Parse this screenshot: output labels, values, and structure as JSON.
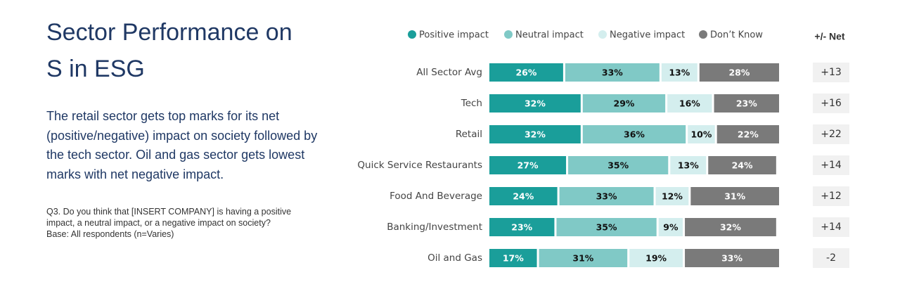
{
  "chart_data": {
    "type": "stacked-bar",
    "orientation": "horizontal",
    "title": "Sector Performance on S in ESG",
    "description": "The retail sector gets top marks for its net (positive/negative) impact on society followed by the tech sector. Oil and gas sector gets lowest marks with net negative impact.",
    "note": "Q3. Do you think that [INSERT COMPANY] is having a positive impact, a neutral impact, or a negative impact on society? Base: All respondents (n=Varies)",
    "categories": [
      "All Sector Avg",
      "Tech",
      "Retail",
      "Quick Service Restaurants",
      "Food And Beverage",
      "Banking/Investment",
      "Oil and Gas"
    ],
    "series": [
      {
        "name": "Positive impact",
        "color": "#1a9e9a",
        "label_color": "#ffffff",
        "values": [
          26,
          32,
          32,
          27,
          24,
          23,
          17
        ],
        "value_labels": [
          "26%",
          "32%",
          "32%",
          "27%",
          "24%",
          "23%",
          "17%"
        ]
      },
      {
        "name": "Neutral impact",
        "color": "#80c9c6",
        "label_color": "#111111",
        "values": [
          33,
          29,
          36,
          35,
          33,
          35,
          31
        ],
        "value_labels": [
          "33%",
          "29%",
          "36%",
          "35%",
          "33%",
          "35%",
          "31%"
        ]
      },
      {
        "name": "Negative impact",
        "color": "#d4eeee",
        "label_color": "#111111",
        "values": [
          13,
          16,
          10,
          13,
          12,
          9,
          19
        ],
        "value_labels": [
          "13%",
          "16%",
          "10%",
          "13%",
          "12%",
          "9%",
          "19%"
        ]
      },
      {
        "name": "Don’t Know",
        "color": "#7a7a7a",
        "label_color": "#ffffff",
        "values": [
          28,
          23,
          22,
          24,
          31,
          32,
          33
        ],
        "value_labels": [
          "28%",
          "23%",
          "22%",
          "24%",
          "31%",
          "32%",
          "33%"
        ]
      }
    ],
    "net": {
      "header": "+/- Net",
      "values": [
        13,
        16,
        22,
        14,
        12,
        14,
        -2
      ],
      "value_labels": [
        "+13",
        "+16",
        "+22",
        "+14",
        "+12",
        "+14",
        "-2"
      ]
    }
  }
}
